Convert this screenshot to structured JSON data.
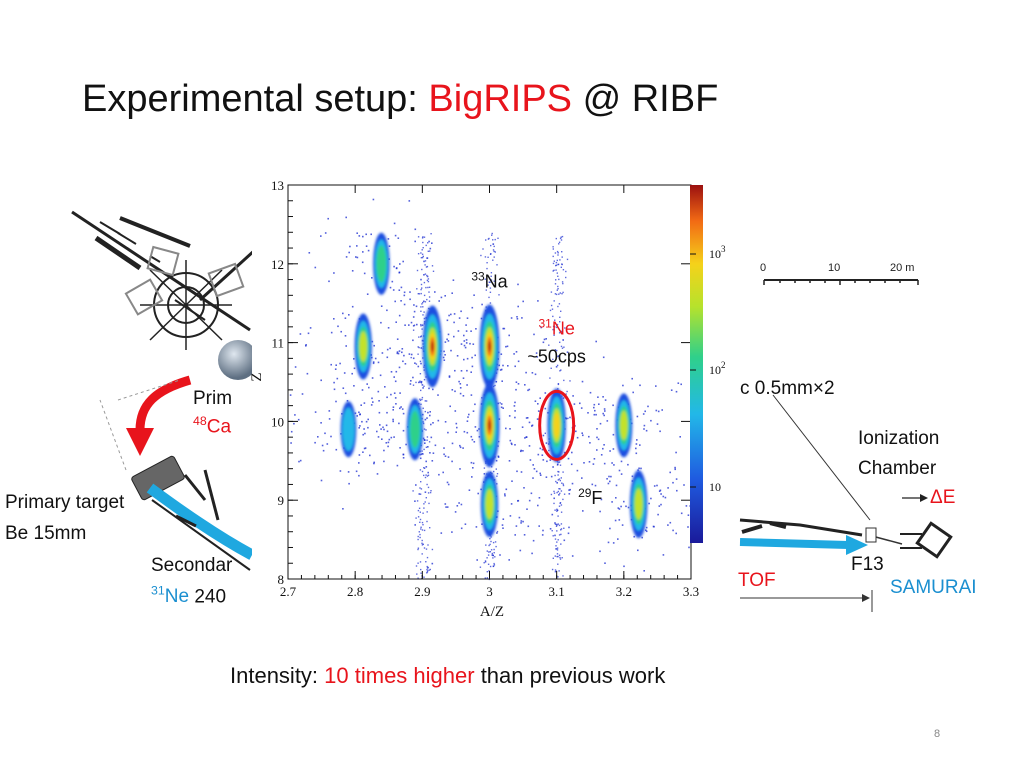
{
  "slide": {
    "title_prefix": "Experimental setup: ",
    "title_accent": "BigRIPS",
    "title_suffix": " @ RIBF",
    "page_number": "8"
  },
  "beamline": {
    "primary_beam_label": "Prim",
    "primary_beam_isotope_mass": "48",
    "primary_beam_isotope": "Ca",
    "primary_target_line1": "Primary target",
    "primary_target_line2": "Be 15mm",
    "secondary_beam_label": "Secondar",
    "secondary_isotope_mass": "31",
    "secondary_isotope": "Ne",
    "secondary_energy": "240",
    "detector_text": "c 0.5mm×2",
    "ionization_line1": "Ionization",
    "ionization_line2": "Chamber",
    "delta_e": "ΔE",
    "focal_plane": "F13",
    "tof_label": "TOF",
    "samurai_label": "SAMURAI",
    "scale_bar": {
      "ticks": [
        "0",
        "10",
        "20 m"
      ]
    }
  },
  "footer": {
    "prefix": "Intensity: ",
    "accent": "10 times higher",
    "suffix": " than previous work"
  },
  "colors": {
    "accent_red": "#e8141c",
    "accent_blue": "#1b8fd0"
  },
  "chart_data": {
    "type": "heatmap",
    "title": "",
    "xlabel": "A/Z",
    "ylabel": "Z",
    "xlim": [
      2.7,
      3.3
    ],
    "ylim": [
      8,
      13
    ],
    "x_ticks": [
      "2.7",
      "2.8",
      "2.9",
      "3",
      "3.1",
      "3.2",
      "3.3"
    ],
    "y_ticks": [
      "8",
      "9",
      "10",
      "11",
      "12",
      "13"
    ],
    "colorbar": {
      "scale": "log",
      "ticks": [
        "10",
        "10^2",
        "10^3"
      ]
    },
    "clusters": [
      {
        "az": 2.839,
        "z": 12.0,
        "level": 0.45
      },
      {
        "az": 2.812,
        "z": 10.95,
        "level": 0.55
      },
      {
        "az": 2.915,
        "z": 10.95,
        "level": 0.95
      },
      {
        "az": 3.0,
        "z": 10.95,
        "level": 1.0
      },
      {
        "az": 2.79,
        "z": 9.9,
        "level": 0.3
      },
      {
        "az": 2.889,
        "z": 9.9,
        "level": 0.45
      },
      {
        "az": 3.0,
        "z": 9.95,
        "level": 1.0
      },
      {
        "az": 3.1,
        "z": 9.95,
        "level": 0.75
      },
      {
        "az": 3.2,
        "z": 9.95,
        "level": 0.5
      },
      {
        "az": 3.0,
        "z": 8.95,
        "level": 0.55
      },
      {
        "az": 3.222,
        "z": 8.95,
        "level": 0.6
      }
    ],
    "annotations": [
      {
        "mass": "33",
        "element": "Na",
        "az": 3.0,
        "z": 11.7
      },
      {
        "mass": "31",
        "element": "Ne",
        "az": 3.1,
        "z": 11.1
      },
      {
        "text": "~50cps",
        "az": 3.1,
        "z": 10.75
      },
      {
        "mass": "29",
        "element": "F",
        "az": 3.15,
        "z": 8.95
      }
    ],
    "highlight": {
      "az": 3.1,
      "z": 9.95,
      "label": "31Ne"
    }
  }
}
